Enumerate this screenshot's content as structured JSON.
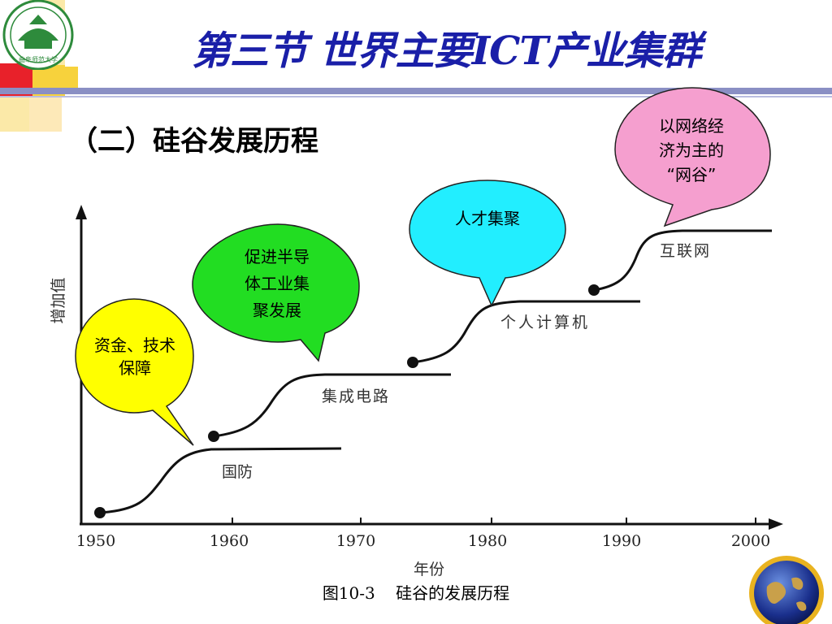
{
  "slide": {
    "title": "第三节  世界主要ICT产业集群",
    "subtitle": "（二）硅谷发展历程",
    "caption": "图10-3    硅谷的发展历程"
  },
  "logo": {
    "text": "曲阜师范大学",
    "colors": {
      "ring": "#2e8b3c",
      "inner": "#ffffff"
    }
  },
  "chart": {
    "x_ticks": [
      "1950",
      "1960",
      "1970",
      "1980",
      "1990",
      "2000"
    ],
    "x_label": "年份",
    "y_label": "增加值",
    "stages": [
      {
        "label": "国防"
      },
      {
        "label": "集成电路"
      },
      {
        "label": "个人计算机"
      },
      {
        "label": "互联网"
      }
    ]
  },
  "bubbles": [
    {
      "name": "bubble-funding",
      "lines": [
        "资金、技术",
        "保障"
      ],
      "color": "#ffff00"
    },
    {
      "name": "bubble-semiconductor",
      "lines": [
        "促进半导",
        "体工业集",
        "聚发展"
      ],
      "color": "#22dd22"
    },
    {
      "name": "bubble-talent",
      "lines": [
        "人才集聚"
      ],
      "color": "#22eeff"
    },
    {
      "name": "bubble-network",
      "lines": [
        "以网络经",
        "济为主的",
        "“网谷”"
      ],
      "color": "#f59fcf"
    }
  ],
  "colors": {
    "title": "#1a1fa8",
    "accent_red": "#e8212a",
    "accent_yellow": "#f7d23c",
    "accent_cream": "#fbe9a8",
    "rule": "#8a8fc4",
    "curve": "#111111"
  }
}
